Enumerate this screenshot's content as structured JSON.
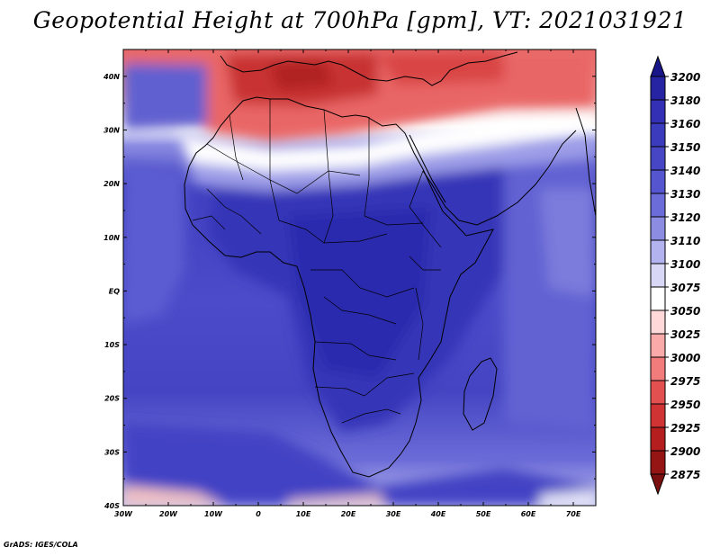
{
  "title": "Geopotential Height at 700hPa [gpm], VT: 2021031921",
  "credit": "GrADS: IGES/COLA",
  "map": {
    "variable": "Geopotential Height",
    "level": "700hPa",
    "units": "gpm",
    "valid_time": "2021031921",
    "lon_range": [
      -30,
      75
    ],
    "lat_range": [
      -40,
      45
    ],
    "lat_ticks": [
      "40N",
      "30N",
      "20N",
      "10N",
      "EQ",
      "10S",
      "20S",
      "30S",
      "40S"
    ],
    "lon_ticks": [
      "30W",
      "20W",
      "10W",
      "0",
      "10E",
      "20E",
      "30E",
      "40E",
      "50E",
      "60E",
      "70E"
    ]
  },
  "colorbar": {
    "levels": [
      "3200",
      "3180",
      "3160",
      "3150",
      "3140",
      "3130",
      "3120",
      "3110",
      "3100",
      "3075",
      "3050",
      "3025",
      "3000",
      "2975",
      "2950",
      "2925",
      "2900",
      "2875"
    ],
    "colors": [
      "#19168a",
      "#2724a3",
      "#3330b5",
      "#3b3bbd",
      "#4747c6",
      "#5555cf",
      "#6b6bd9",
      "#8c8ce3",
      "#b3b3ef",
      "#d8d8f6",
      "#ffffff",
      "#ffd9d9",
      "#fbaaaa",
      "#f27b7b",
      "#e35050",
      "#d03333",
      "#b41e1e",
      "#951414",
      "#7a0f0f"
    ]
  }
}
